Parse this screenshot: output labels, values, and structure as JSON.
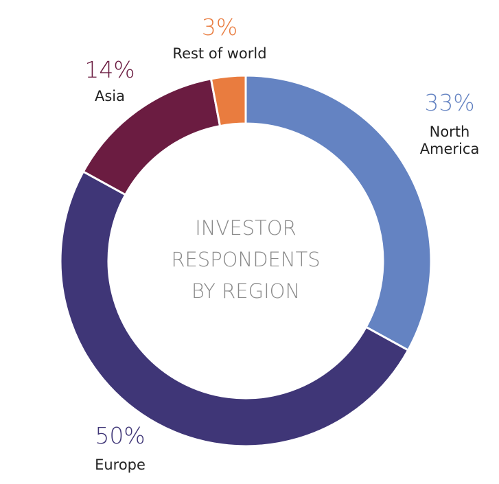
{
  "chart_data": {
    "type": "donut",
    "center_text": [
      "INVESTOR",
      "RESPONDENTS",
      "BY REGION"
    ],
    "categories": [
      "North America",
      "Europe",
      "Asia",
      "Rest of world"
    ],
    "values": [
      33,
      50,
      14,
      3
    ],
    "value_labels": [
      "33%",
      "50%",
      "14%",
      "3%"
    ],
    "colors": [
      "#6483c2",
      "#3f3677",
      "#6b1c41",
      "#e97c3f"
    ]
  }
}
